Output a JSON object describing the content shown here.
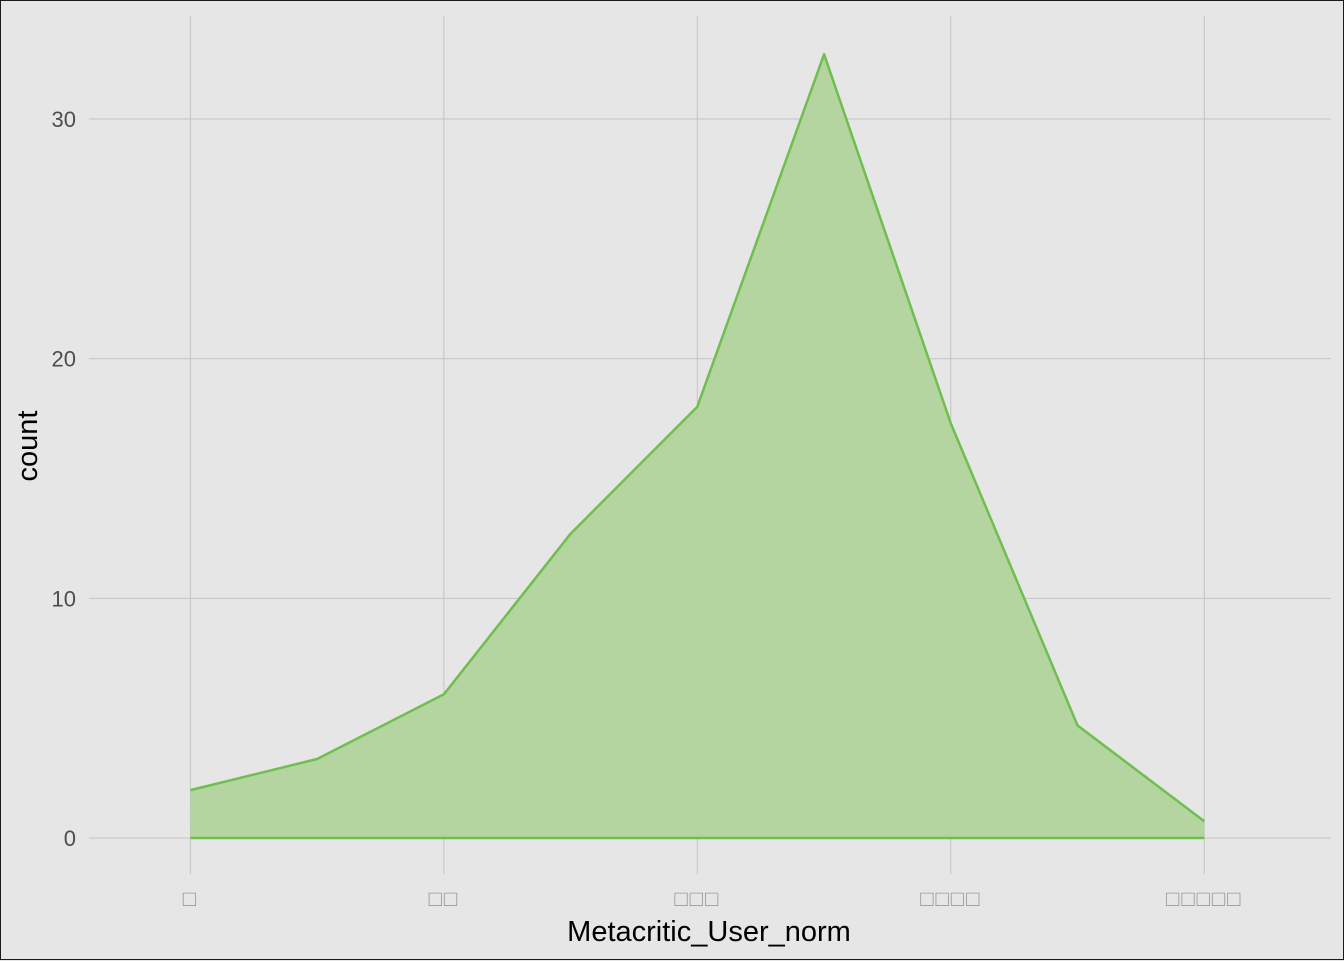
{
  "chart_data": {
    "type": "area",
    "xlabel": "Metacritic_User_norm",
    "ylabel": "count",
    "x_ticks": [
      1,
      2,
      3,
      4,
      5
    ],
    "x_tick_labels": [
      "□",
      "□□",
      "□□□",
      "□□□□",
      "□□□□□"
    ],
    "y_ticks": [
      0,
      10,
      20,
      30
    ],
    "xlim": [
      0.6,
      5.5
    ],
    "ylim": [
      -1.5,
      34.3
    ],
    "grid": true,
    "legend": "none",
    "series": [
      {
        "x": [
          1.0,
          1.5,
          2.0,
          2.5,
          3.0,
          3.5,
          4.0,
          4.5,
          5.0
        ],
        "y": [
          2.0,
          3.3,
          6.0,
          12.7,
          18.0,
          32.7,
          17.3,
          4.7,
          0.7
        ]
      }
    ],
    "colors": {
      "fill": "#b1d39c",
      "line": "#6fbf4f",
      "panel": "#e6e6e6",
      "grid": "#c4c4c4"
    }
  }
}
